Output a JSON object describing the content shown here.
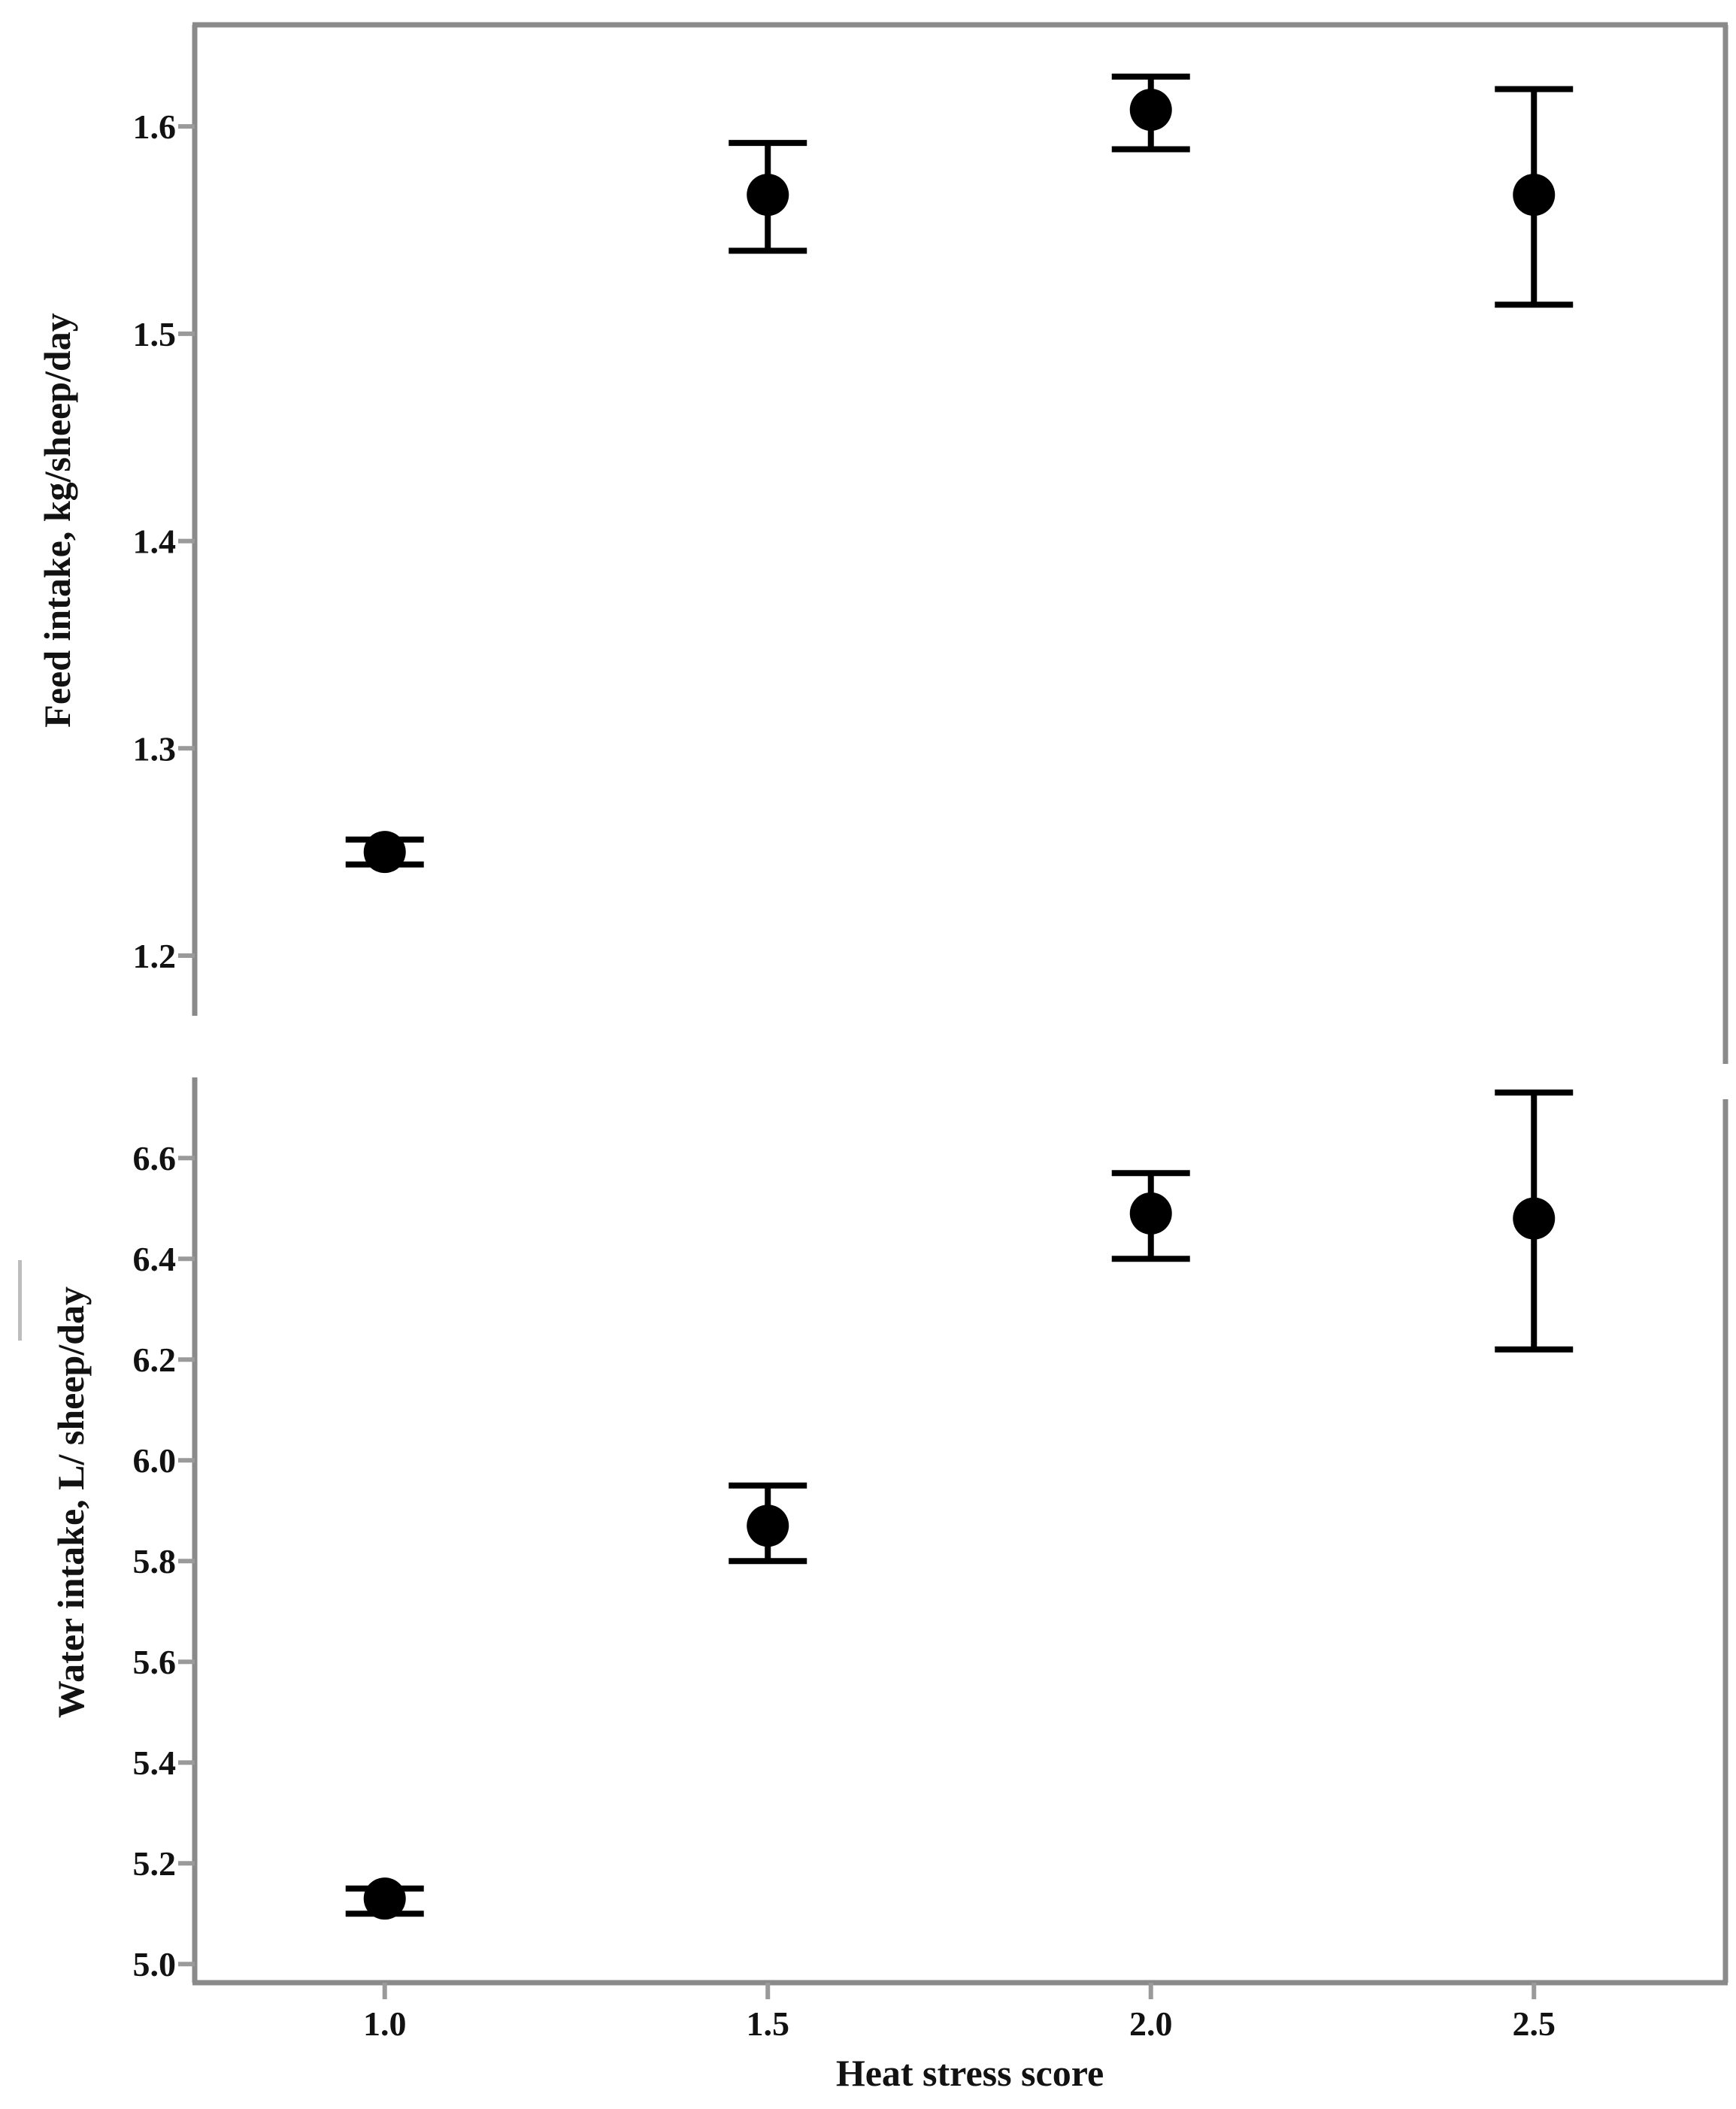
{
  "chart_data": {
    "type": "scatter",
    "title": "",
    "shared_x": {
      "label": "Heat stress score",
      "ticks": [
        1.0,
        1.5,
        2.0,
        2.5
      ],
      "tick_labels": [
        "1.0",
        "1.5",
        "2.0",
        "2.5"
      ],
      "lim": [
        0.752,
        2.75
      ]
    },
    "panels": [
      {
        "id": "feed-intake",
        "ylabel": "Feed intake, kg/sheep/day",
        "yticks": [
          1.2,
          1.3,
          1.4,
          1.5,
          1.6
        ],
        "ytick_labels": [
          "1.2",
          "1.3",
          "1.4",
          "1.5",
          "1.6"
        ],
        "ylim": [
          1.171,
          1.649
        ],
        "series_name": "Feed intake mean ± CI",
        "points": [
          {
            "x": 1.0,
            "mean": 1.25,
            "ci_low": 1.244,
            "ci_high": 1.256
          },
          {
            "x": 1.5,
            "mean": 1.567,
            "ci_low": 1.54,
            "ci_high": 1.592
          },
          {
            "x": 2.0,
            "mean": 1.608,
            "ci_low": 1.589,
            "ci_high": 1.624
          },
          {
            "x": 2.5,
            "mean": 1.567,
            "ci_low": 1.514,
            "ci_high": 1.618
          }
        ]
      },
      {
        "id": "water-intake",
        "ylabel": "Water intake, L/ sheep/day",
        "yticks": [
          5.0,
          5.2,
          5.4,
          5.6,
          5.8,
          6.0,
          6.2,
          6.4,
          6.6
        ],
        "ytick_labels": [
          "5.0",
          "5.2",
          "5.4",
          "5.6",
          "5.8",
          "6.0",
          "6.2",
          "6.4",
          "6.6"
        ],
        "ylim": [
          4.963,
          6.76
        ],
        "series_name": "Water intake mean ± CI",
        "points": [
          {
            "x": 1.0,
            "mean": 5.13,
            "ci_low": 5.1,
            "ci_high": 5.15
          },
          {
            "x": 1.5,
            "mean": 5.87,
            "ci_low": 5.8,
            "ci_high": 5.95
          },
          {
            "x": 2.0,
            "mean": 6.49,
            "ci_low": 6.4,
            "ci_high": 6.57
          },
          {
            "x": 2.5,
            "mean": 6.48,
            "ci_low": 6.22,
            "ci_high": 6.73
          }
        ]
      }
    ],
    "style": {
      "marker_color": "#000000",
      "errorbar_color": "#000000",
      "axis_color": "#8a8a8a",
      "tick_color": "#9a9a9a",
      "text_color": "#121212",
      "background": "#ffffff"
    },
    "layout_hints": {
      "grid": false,
      "legend": "none",
      "marker": "filled-circle"
    }
  }
}
